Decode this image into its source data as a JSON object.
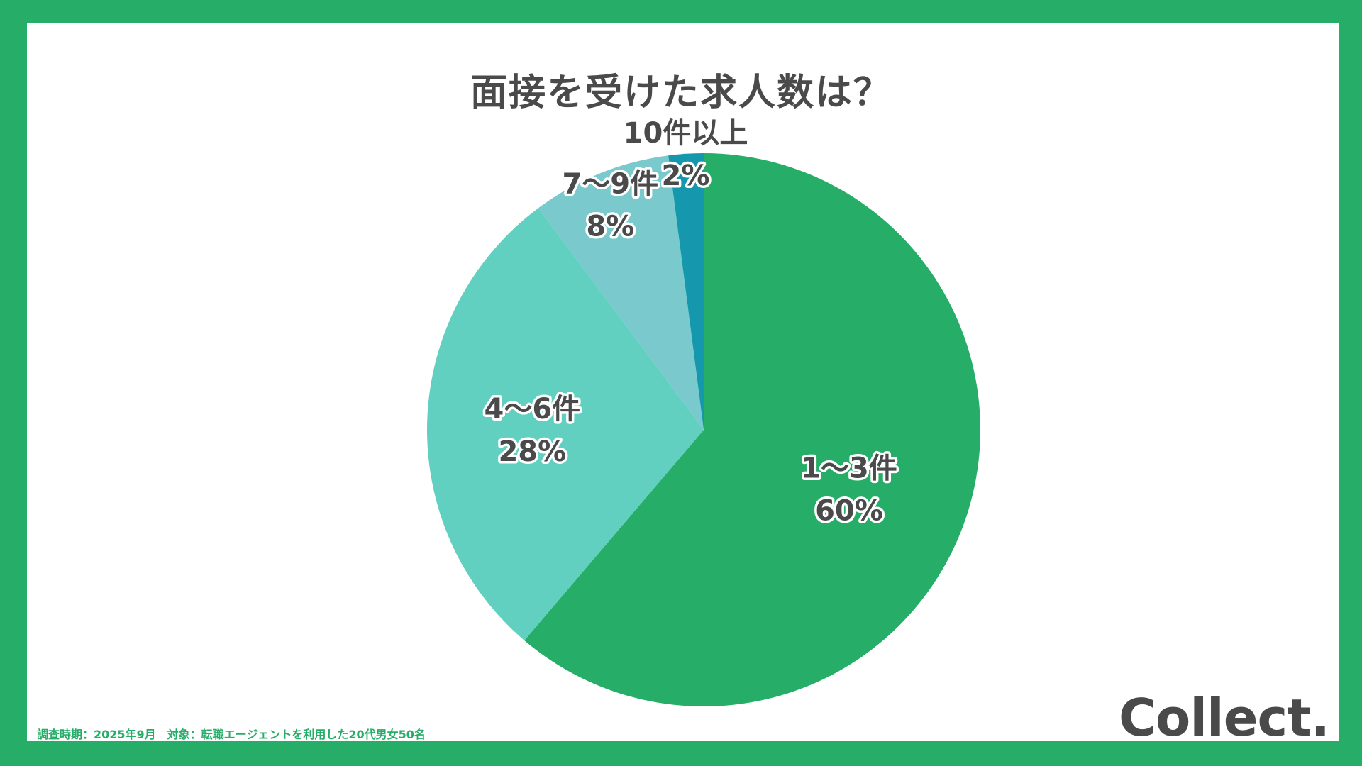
{
  "title": "面接を受けた求人数は？",
  "chart_data": {
    "type": "pie",
    "title": "面接を受けた求人数は？",
    "categories": [
      "1〜3件",
      "4〜6件",
      "7〜9件",
      "10件以上"
    ],
    "values": [
      60,
      28,
      8,
      2
    ],
    "value_labels": [
      "60%",
      "28%",
      "8%",
      "2%"
    ],
    "colors": [
      "#26ae68",
      "#61d0c1",
      "#79c9cd",
      "#1598ad"
    ],
    "start_angle": "top",
    "direction": "clockwise"
  },
  "footnote": "調査時期：2025年9月　対象：転職エージェントを利用した20代男女50名",
  "logo": "Collect."
}
